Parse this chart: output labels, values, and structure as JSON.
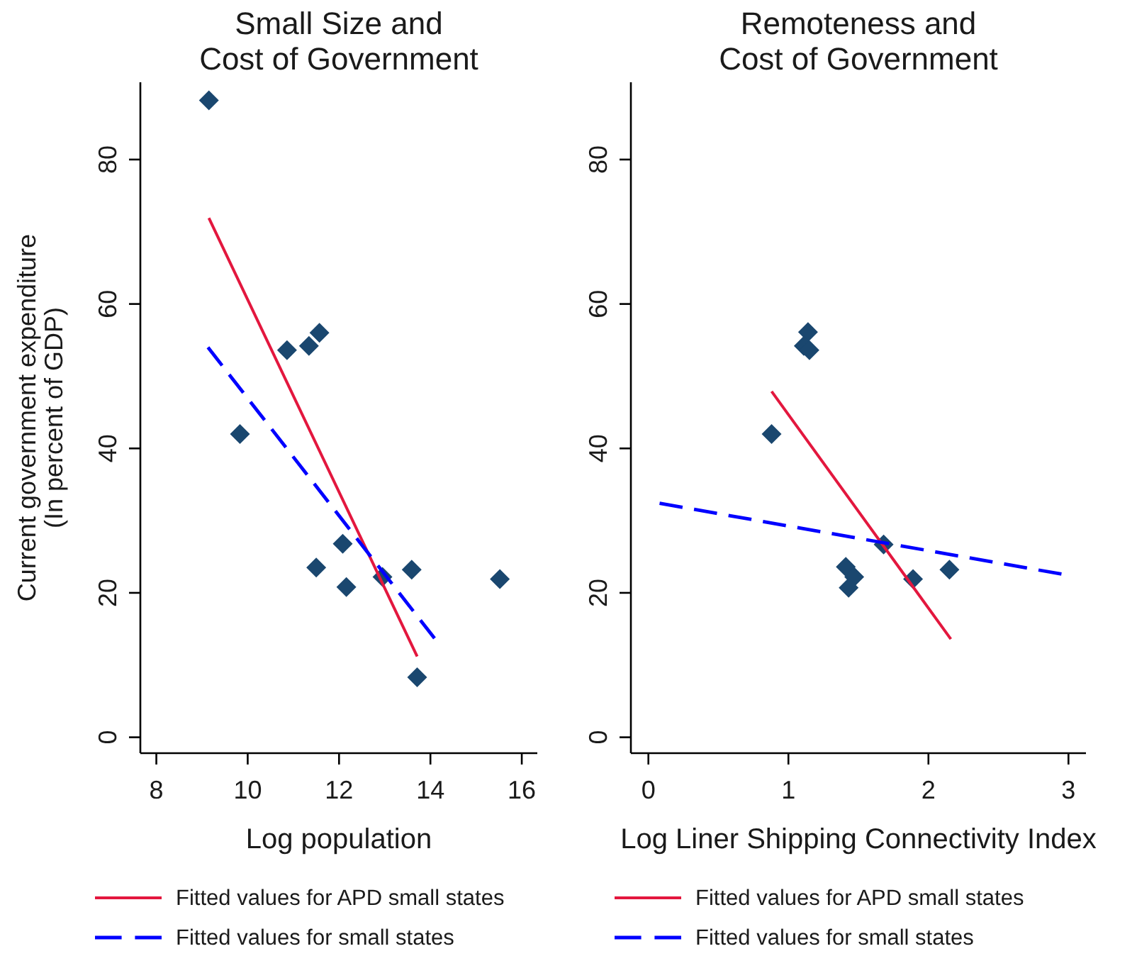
{
  "chart_data": [
    {
      "type": "scatter",
      "title": "Small Size and\nCost of Government",
      "xlabel": "Log population",
      "ylabel": "Current government expenditure\n(In percent of GDP)",
      "xlim": [
        7.65,
        16.34
      ],
      "xticks": [
        8,
        10,
        12,
        14,
        16
      ],
      "ylim": [
        -2.2,
        90.7
      ],
      "yticks": [
        0,
        20,
        40,
        60,
        80
      ],
      "legend": "bottom",
      "series": [
        {
          "type": "scatter",
          "color": "#1a476f",
          "marker": "diamond",
          "x": [
            9.15,
            10.86,
            11.34,
            11.57,
            9.83,
            11.5,
            12.08,
            12.16,
            12.95,
            13.59,
            15.52,
            13.71
          ],
          "values": [
            88.2,
            53.6,
            54.2,
            56.0,
            42.0,
            23.5,
            26.8,
            20.8,
            22.2,
            23.2,
            21.9,
            8.3
          ]
        },
        {
          "type": "line",
          "name": "Fitted values for APD small states",
          "color": "#e3173e",
          "line_style": "solid",
          "x": [
            9.15,
            13.71
          ],
          "values": [
            71.9,
            11.2
          ]
        },
        {
          "type": "line",
          "name": "Fitted values for small states",
          "color": "#0000ff",
          "line_style": "dashed",
          "x": [
            9.13,
            14.09
          ],
          "values": [
            54.0,
            13.7
          ]
        }
      ]
    },
    {
      "type": "scatter",
      "title": "Remoteness and\nCost of Government",
      "xlabel": "Log Liner Shipping Connectivity Index",
      "xlim": [
        -0.125,
        3.125
      ],
      "xticks": [
        0,
        1,
        2,
        3
      ],
      "ylim": [
        -2.2,
        90.7
      ],
      "yticks": [
        0,
        20,
        40,
        60,
        80
      ],
      "legend": "bottom",
      "series": [
        {
          "type": "scatter",
          "color": "#1a476f",
          "marker": "diamond",
          "x": [
            0.88,
            1.14,
            1.11,
            1.15,
            1.68,
            1.41,
            1.47,
            1.43,
            1.89,
            2.15
          ],
          "values": [
            42.0,
            56.1,
            54.2,
            53.6,
            26.7,
            23.6,
            22.2,
            20.7,
            21.9,
            23.2
          ]
        },
        {
          "type": "line",
          "name": "Fitted values for APD small states",
          "color": "#e3173e",
          "line_style": "solid",
          "x": [
            0.88,
            2.16
          ],
          "values": [
            47.9,
            13.6
          ]
        },
        {
          "type": "line",
          "name": "Fitted values for small states",
          "color": "#0000ff",
          "line_style": "dashed",
          "x": [
            0.08,
            2.95
          ],
          "values": [
            32.4,
            22.6
          ]
        }
      ]
    }
  ]
}
